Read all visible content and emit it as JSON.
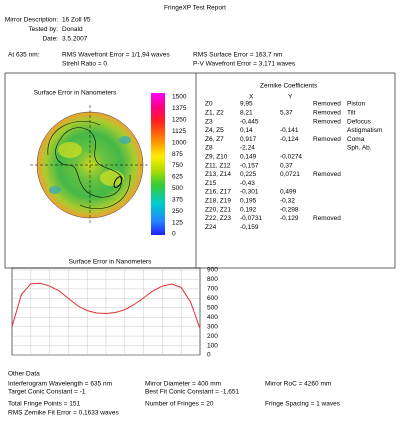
{
  "header": {
    "title": "FringeXP Test Report",
    "fields": [
      {
        "label": "Mirror Description:",
        "value": "16 Zoll f/5"
      },
      {
        "label": "Tested by:",
        "value": "Donald"
      },
      {
        "label": "Date:",
        "value": "3.5.2007"
      }
    ]
  },
  "summary": {
    "label": "At 635 nm:",
    "left": [
      "RMS Wavefront Error = 1/1,94 waves",
      "Strehl Ratio = 0"
    ],
    "right": [
      "RMS Surface Error = 163,7 nm",
      "P-V Wavefront Error = 3,171 waves"
    ]
  },
  "surface_map": {
    "title": "Surface Error in Nanometers",
    "scale": [
      1500,
      1375,
      1250,
      1125,
      1000,
      875,
      750,
      625,
      500,
      375,
      250,
      125,
      0
    ]
  },
  "zernike": {
    "title": "Zernike Coefficients",
    "columns": [
      "X",
      "Y"
    ],
    "rows": [
      {
        "term": "Z0",
        "x": "9,95",
        "status": "Removed",
        "name": "Piston"
      },
      {
        "term": "Z1, Z2",
        "x": "8,21",
        "y": "5,37",
        "status": "Removed",
        "name": "Tilt"
      },
      {
        "term": "Z3",
        "x": "-0,445",
        "status": "Removed",
        "name": "Defocus"
      },
      {
        "term": "Z4, Z5",
        "x": "0,14",
        "y": "-0,141",
        "name": "Astigmatism"
      },
      {
        "term": "Z6, Z7",
        "x": "0,917",
        "y": "-0,124",
        "status": "Removed",
        "name": "Coma"
      },
      {
        "term": "Z8",
        "x": "-2,24",
        "name": "Sph. Ab."
      },
      {
        "term": "Z9, Z10",
        "x": "0,149",
        "y": "-0,0274"
      },
      {
        "term": "Z11, Z12",
        "x": "-0,157",
        "y": "0,37"
      },
      {
        "term": "Z13, Z14",
        "x": "0,225",
        "y": "0,0721",
        "status": "Removed"
      },
      {
        "term": "Z15",
        "x": "-0,43"
      },
      {
        "term": "Z16, Z17",
        "x": "-0,301",
        "y": "0,499"
      },
      {
        "term": "Z18, Z19",
        "x": "0,195",
        "y": "-0,32"
      },
      {
        "term": "Z20, Z21",
        "x": "0,192",
        "y": "-0,298"
      },
      {
        "term": "Z22, Z23",
        "x": "-0,0731",
        "y": "-0,129",
        "status": "Removed"
      },
      {
        "term": "Z24",
        "x": "-0,159"
      }
    ]
  },
  "profile": {
    "title": "Surface Error in Nanometers",
    "ylim": [
      0,
      900
    ],
    "yticks": [
      0,
      100,
      200,
      300,
      400,
      500,
      600,
      700,
      800,
      900
    ],
    "color": "#e03030",
    "values": [
      300,
      640,
      755,
      760,
      730,
      680,
      600,
      520,
      470,
      445,
      440,
      450,
      480,
      535,
      605,
      680,
      730,
      752,
      715,
      560,
      280
    ]
  },
  "other_data": {
    "title": "Other Data",
    "rows": [
      [
        "Interferogram Wavelength = 635 nm",
        "Mirror Diameter = 400 mm",
        "Mirror RoC = 4260 mm"
      ],
      [
        "Target Conic Constant = -1",
        "Best Fit Conic Constant = -1,651"
      ],
      [
        "Total Fringe Points = 151",
        "Number of Fringes = 20",
        "Fringe Spacing = 1 waves"
      ],
      [
        "RMS Zernike Fit Error = 0,1633 waves"
      ]
    ]
  }
}
